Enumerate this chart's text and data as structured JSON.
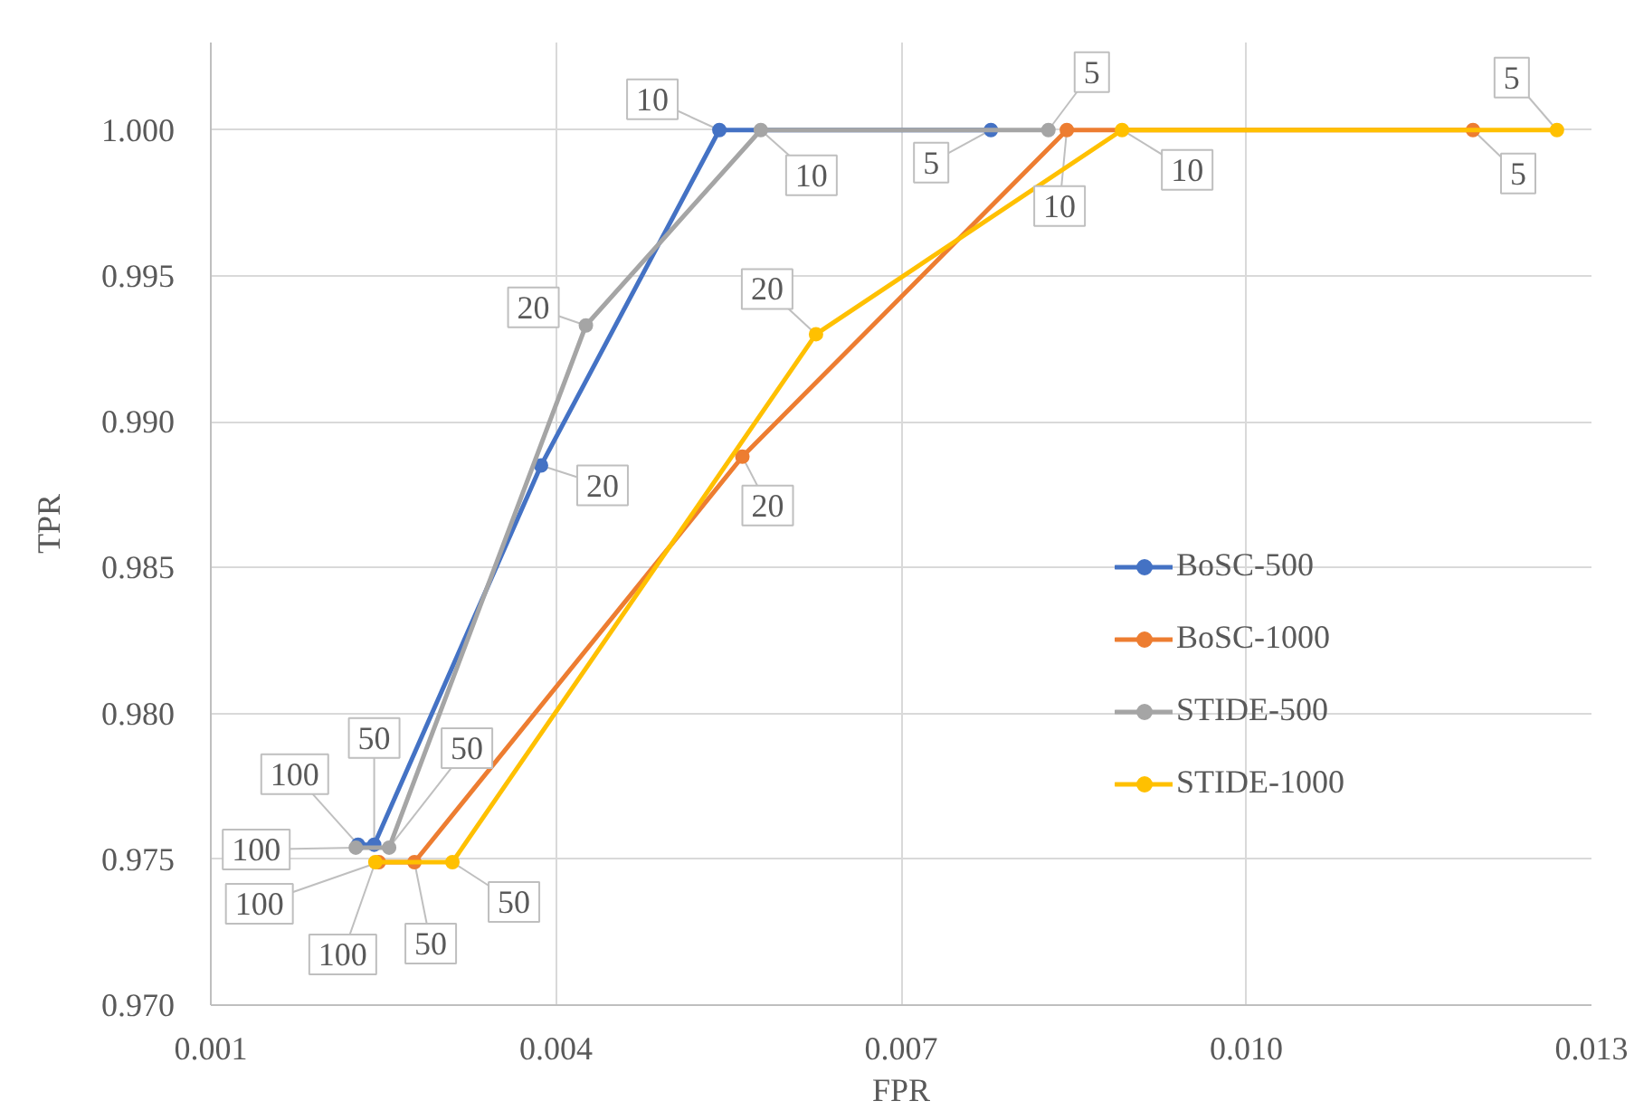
{
  "chart_data": {
    "type": "line",
    "xlabel": "FPR",
    "ylabel": "TPR",
    "xlim": [
      0.001,
      0.013
    ],
    "ylim": [
      0.97,
      1.003
    ],
    "xticks": [
      0.001,
      0.004,
      0.007,
      {
        "value": 0.01,
        "label": "0.010"
      },
      0.013
    ],
    "yticks": [
      {
        "value": 0.97,
        "label": "0.970"
      },
      0.975,
      {
        "value": 0.98,
        "label": "0.980"
      },
      0.985,
      {
        "value": 0.99,
        "label": "0.990"
      },
      0.995,
      {
        "value": 1.0,
        "label": "1.000"
      }
    ],
    "grid": true,
    "legend": "right",
    "marker": "circle",
    "series": [
      {
        "name": "BoSC-500",
        "color": "#4472c4",
        "x": [
          0.00228,
          0.00242,
          0.00387,
          0.00542,
          0.00778
        ],
        "values": [
          0.9755,
          0.9755,
          0.9885,
          1.0,
          1.0
        ]
      },
      {
        "name": "BoSC-1000",
        "color": "#ed7d31",
        "x": [
          0.00246,
          0.00277,
          0.00562,
          0.00844,
          0.01197
        ],
        "values": [
          0.9749,
          0.9749,
          0.9888,
          1.0,
          1.0
        ]
      },
      {
        "name": "STIDE-500",
        "color": "#a5a5a5",
        "x": [
          0.00226,
          0.00255,
          0.00426,
          0.00578,
          0.00828
        ],
        "values": [
          0.9754,
          0.9754,
          0.9933,
          1.0,
          1.0
        ]
      },
      {
        "name": "STIDE-1000",
        "color": "#ffc000",
        "x": [
          0.00243,
          0.0031,
          0.00626,
          0.00892,
          0.0127
        ],
        "values": [
          0.9749,
          0.9749,
          0.993,
          1.0,
          1.0
        ]
      }
    ],
    "annotations": [
      {
        "text": "100",
        "x": 0.00228,
        "y": 0.9755
      },
      {
        "text": "50",
        "x": 0.00242,
        "y": 0.9755
      },
      {
        "text": "20",
        "x": 0.00387,
        "y": 0.9885
      },
      {
        "text": "10",
        "x": 0.00542,
        "y": 1.0
      },
      {
        "text": "5",
        "x": 0.00778,
        "y": 1.0
      },
      {
        "text": "100",
        "x": 0.00246,
        "y": 0.9749
      },
      {
        "text": "50",
        "x": 0.00277,
        "y": 0.9749
      },
      {
        "text": "20",
        "x": 0.00562,
        "y": 0.9888
      },
      {
        "text": "10",
        "x": 0.00844,
        "y": 1.0
      },
      {
        "text": "5",
        "x": 0.01197,
        "y": 1.0
      },
      {
        "text": "100",
        "x": 0.00226,
        "y": 0.9754
      },
      {
        "text": "50",
        "x": 0.00255,
        "y": 0.9754
      },
      {
        "text": "20",
        "x": 0.00426,
        "y": 0.9933
      },
      {
        "text": "10",
        "x": 0.00578,
        "y": 1.0
      },
      {
        "text": "5",
        "x": 0.00828,
        "y": 1.0
      },
      {
        "text": "100",
        "x": 0.00243,
        "y": 0.9749
      },
      {
        "text": "50",
        "x": 0.0031,
        "y": 0.9749
      },
      {
        "text": "20",
        "x": 0.00626,
        "y": 0.993
      },
      {
        "text": "10",
        "x": 0.00892,
        "y": 1.0
      },
      {
        "text": "5",
        "x": 0.0127,
        "y": 1.0
      }
    ]
  }
}
